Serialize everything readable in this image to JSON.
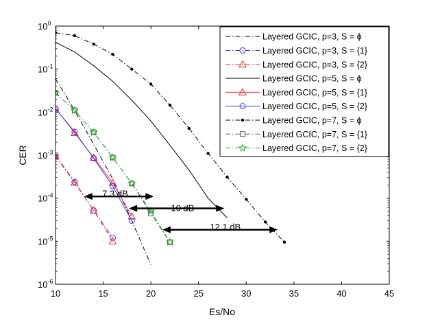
{
  "chart_data": {
    "type": "line",
    "title": "",
    "xlabel": "Es/No",
    "ylabel": "CER",
    "xlim": [
      10,
      45
    ],
    "ylim": [
      1e-06,
      1
    ],
    "yscale": "log",
    "grid": false,
    "legend_position": "top-right",
    "x_ticks": [
      10,
      15,
      20,
      25,
      30,
      35,
      40,
      45
    ],
    "x_tick_labels": [
      "10",
      "15",
      "20",
      "25",
      "30",
      "35",
      "40",
      "45"
    ],
    "y_ticks": [
      1e-06,
      1e-05,
      0.0001,
      0.001,
      0.01,
      0.1,
      1
    ],
    "y_tick_base": "10",
    "y_tick_exponents": [
      "-6",
      "-5",
      "-4",
      "-3",
      "-2",
      "-1",
      "0"
    ],
    "series": [
      {
        "name": "Layered GCIC, p=3, S = ϕ",
        "color": "#000000",
        "dash": "dashdot",
        "marker": "none",
        "x": [
          10,
          12,
          14,
          16,
          18,
          20
        ],
        "y": [
          0.06,
          0.011,
          0.0018,
          0.00028,
          3e-05,
          2.8e-06
        ]
      },
      {
        "name": "Layered GCIC, p=3, S = {1}",
        "color": "#3333ff",
        "dash": "dashdot",
        "marker": "circle",
        "x": [
          10,
          12,
          14,
          16
        ],
        "y": [
          0.001,
          0.00024,
          5.2e-05,
          1.2e-05
        ]
      },
      {
        "name": "Layered GCIC, p=3, S = {2}",
        "color": "#ff2222",
        "dash": "dashdot",
        "marker": "triangle",
        "x": [
          10,
          12,
          14,
          16
        ],
        "y": [
          0.00095,
          0.00023,
          5.2e-05,
          1e-05
        ]
      },
      {
        "name": "Layered GCIC, p=5, S = ϕ",
        "color": "#000000",
        "dash": "solid",
        "marker": "none",
        "x": [
          10,
          12,
          14,
          16,
          18,
          20,
          22,
          24,
          26,
          28
        ],
        "y": [
          0.42,
          0.25,
          0.12,
          0.052,
          0.019,
          0.0062,
          0.0017,
          0.00045,
          0.0001,
          3.5e-05
        ]
      },
      {
        "name": "Layered GCIC, p=5, S = {1}",
        "color": "#ff2222",
        "dash": "solid",
        "marker": "triangle",
        "x": [
          10,
          12,
          14,
          16,
          18
        ],
        "y": [
          0.0125,
          0.0033,
          0.00088,
          0.00023,
          3.8e-05
        ]
      },
      {
        "name": "Layered GCIC, p=5, S = {2}",
        "color": "#3333ff",
        "dash": "solid",
        "marker": "circle",
        "x": [
          10,
          12,
          14,
          16,
          18
        ],
        "y": [
          0.012,
          0.0035,
          0.00085,
          0.00019,
          3e-05
        ]
      },
      {
        "name": "Layered GCIC, p=7, S = ϕ",
        "color": "#000000",
        "dash": "dashdot",
        "marker": "dot",
        "x": [
          10,
          12,
          14,
          16,
          18,
          20,
          22,
          24,
          26,
          28,
          30,
          32,
          34
        ],
        "y": [
          0.7,
          0.6,
          0.38,
          0.22,
          0.1,
          0.045,
          0.0145,
          0.0042,
          0.0011,
          0.00031,
          9.4e-05,
          2.8e-05,
          9.5e-06
        ]
      },
      {
        "name": "Layered GCIC, p=7, S = {1}",
        "color": "#555555",
        "dash": "dashdot",
        "marker": "square",
        "x": [
          10,
          12,
          14,
          16,
          18,
          20,
          22
        ],
        "y": [
          0.028,
          0.011,
          0.0034,
          0.00088,
          0.00022,
          4.4e-05,
          9.5e-06
        ]
      },
      {
        "name": "Layered GCIC, p=7, S = {2}",
        "color": "#22aa22",
        "dash": "dashdot",
        "marker": "star",
        "x": [
          10,
          12,
          14,
          16,
          18,
          20,
          22
        ],
        "y": [
          0.028,
          0.011,
          0.0034,
          0.00088,
          0.00022,
          5e-05,
          9.5e-06
        ]
      }
    ],
    "annotations": [
      {
        "label": "7.3 dB",
        "x_start": 13,
        "x_end": 20.3,
        "y": 0.00011,
        "label_x": 14.9,
        "label_y": 5.2e-05
      },
      {
        "label": "10 dB",
        "x_start": 17.7,
        "x_end": 27.7,
        "y": 5.8e-05,
        "label_x": 22.1,
        "label_y": 2.4e-05
      },
      {
        "label": "12.1 dB",
        "x_start": 21.2,
        "x_end": 33.3,
        "y": 1.85e-05,
        "label_x": 26.2,
        "label_y": 8.8e-06
      }
    ]
  }
}
